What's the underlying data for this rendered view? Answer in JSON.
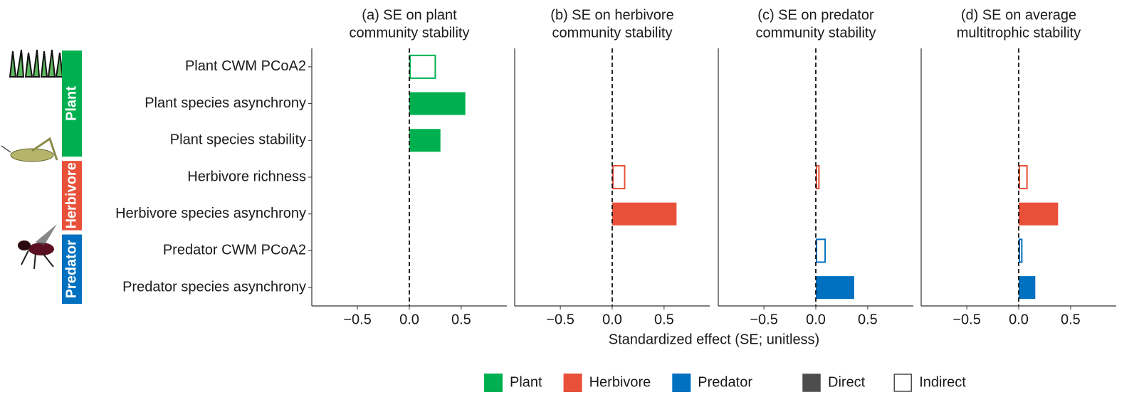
{
  "categories": [
    "Plant CWM PCoA2",
    "Plant species asynchrony",
    "Plant species stability",
    "Herbivore richness",
    "Herbivore species asynchrony",
    "Predator CWM PCoA2",
    "Predator species asynchrony"
  ],
  "category_groups": [
    "Plant",
    "Plant",
    "Plant",
    "Herbivore",
    "Herbivore",
    "Predator",
    "Predator"
  ],
  "groups": [
    {
      "name": "Plant",
      "color": "#00b050"
    },
    {
      "name": "Herbivore",
      "color": "#e8503a"
    },
    {
      "name": "Predator",
      "color": "#0070c0"
    }
  ],
  "effects": [
    {
      "name": "Direct",
      "filled": true,
      "color": "#4d4d4d"
    },
    {
      "name": "Indirect",
      "filled": false,
      "color": "#4d4d4d"
    }
  ],
  "xlabel": "Standardized effect (SE; unitless)",
  "chart_data": [
    {
      "type": "bar",
      "orientation": "horizontal",
      "title": [
        "(a) SE on plant",
        "community stability"
      ],
      "values": [
        0.25,
        0.54,
        0.3,
        null,
        null,
        null,
        null
      ],
      "effect": [
        "Indirect",
        "Direct",
        "Direct",
        null,
        null,
        null,
        null
      ],
      "xlim": [
        -0.94,
        0.94
      ],
      "xticks": [
        {
          "value": -0.5,
          "label": "−0.5"
        },
        {
          "value": 0,
          "label": "0.0"
        },
        0.5
      ]
    },
    {
      "type": "bar",
      "orientation": "horizontal",
      "title": [
        "(b) SE on herbivore",
        "community stability"
      ],
      "values": [
        null,
        null,
        null,
        0.12,
        0.62,
        null,
        null
      ],
      "effect": [
        null,
        null,
        null,
        "Indirect",
        "Direct",
        null,
        null
      ],
      "xlim": [
        -0.94,
        0.94
      ],
      "xticks": [
        {
          "value": -0.5,
          "label": "−0.5"
        },
        {
          "value": 0,
          "label": "0.0"
        },
        0.5
      ]
    },
    {
      "type": "bar",
      "orientation": "horizontal",
      "title": [
        "(c) SE on predator",
        "community stability"
      ],
      "values": [
        null,
        null,
        null,
        0.03,
        null,
        0.09,
        0.37
      ],
      "effect": [
        null,
        null,
        null,
        "Indirect",
        null,
        "Indirect",
        "Direct"
      ],
      "xlim": [
        -0.94,
        0.94
      ],
      "xticks": [
        {
          "value": -0.5,
          "label": "−0.5"
        },
        {
          "value": 0,
          "label": "0.0"
        },
        0.5
      ]
    },
    {
      "type": "bar",
      "orientation": "horizontal",
      "title": [
        "(d) SE on average",
        "multitrophic stability"
      ],
      "values": [
        null,
        null,
        null,
        0.08,
        0.38,
        0.03,
        0.16
      ],
      "effect": [
        null,
        null,
        null,
        "Indirect",
        "Direct",
        "Indirect",
        "Direct"
      ],
      "xlim": [
        -0.94,
        0.94
      ],
      "xticks": [
        {
          "value": -0.5,
          "label": "−0.5"
        },
        {
          "value": 0,
          "label": "0.0"
        },
        0.5
      ]
    }
  ]
}
